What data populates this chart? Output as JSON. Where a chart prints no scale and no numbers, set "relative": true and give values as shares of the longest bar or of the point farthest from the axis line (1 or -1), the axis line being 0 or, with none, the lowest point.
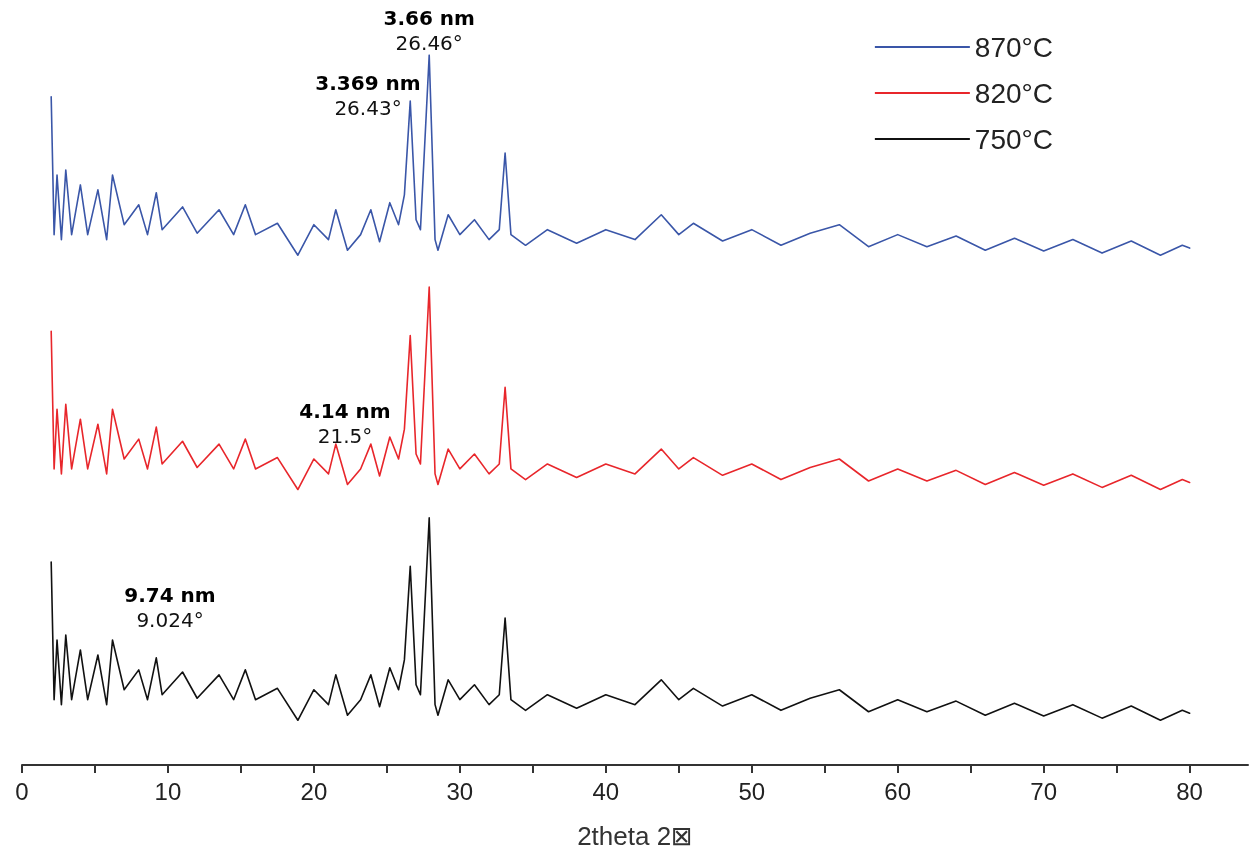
{
  "chart_data": {
    "type": "line",
    "relative": true,
    "xlabel": "2theta 2⊠",
    "legend": "top right",
    "tick_labels": "x",
    "xlim": [
      0,
      84
    ],
    "xticks": [
      0,
      {
        "value": 5,
        "label": null
      },
      10,
      {
        "value": 15,
        "label": null
      },
      20,
      {
        "value": 25,
        "label": null
      },
      30,
      {
        "value": 35,
        "label": null
      },
      40,
      {
        "value": 45,
        "label": null
      },
      50,
      {
        "value": 55,
        "label": null
      },
      60,
      {
        "value": 65,
        "label": null
      },
      70,
      {
        "value": 75,
        "label": null
      },
      80
    ],
    "x": [
      2.0,
      2.2,
      2.4,
      2.7,
      3.0,
      3.4,
      4.0,
      4.5,
      5.2,
      5.8,
      6.2,
      7.0,
      8.0,
      8.6,
      9.2,
      9.6,
      11,
      12,
      13.5,
      14.5,
      15.3,
      16,
      17.5,
      18.9,
      20,
      21,
      21.5,
      22.3,
      23.2,
      23.9,
      24.5,
      25.2,
      25.8,
      26.2,
      26.6,
      27.0,
      27.3,
      27.9,
      28.3,
      28.5,
      29.2,
      30,
      31,
      32,
      32.7,
      33.1,
      33.5,
      34.5,
      36,
      38,
      40,
      42,
      43.8,
      45,
      46,
      48,
      50,
      52,
      54,
      56,
      58,
      60,
      62,
      64,
      66,
      68,
      70,
      72,
      74,
      76,
      78,
      79.5,
      80
    ],
    "series": [
      {
        "name": "870°C",
        "color": "#3a56a8",
        "values": [
          0.941,
          0.747,
          0.831,
          0.74,
          0.838,
          0.747,
          0.817,
          0.747,
          0.81,
          0.74,
          0.831,
          0.761,
          0.789,
          0.747,
          0.806,
          0.754,
          0.786,
          0.749,
          0.782,
          0.747,
          0.789,
          0.747,
          0.763,
          0.718,
          0.761,
          0.74,
          0.782,
          0.725,
          0.747,
          0.782,
          0.737,
          0.792,
          0.761,
          0.803,
          0.935,
          0.768,
          0.754,
          1.0,
          0.74,
          0.725,
          0.775,
          0.747,
          0.768,
          0.74,
          0.754,
          0.862,
          0.747,
          0.732,
          0.754,
          0.735,
          0.754,
          0.74,
          0.775,
          0.747,
          0.763,
          0.738,
          0.754,
          0.732,
          0.749,
          0.761,
          0.73,
          0.747,
          0.73,
          0.745,
          0.725,
          0.742,
          0.724,
          0.74,
          0.721,
          0.738,
          0.718,
          0.732,
          0.728
        ]
      },
      {
        "name": "820°C",
        "color": "#e8262b",
        "values": [
          0.611,
          0.417,
          0.501,
          0.41,
          0.508,
          0.417,
          0.487,
          0.417,
          0.48,
          0.41,
          0.501,
          0.431,
          0.459,
          0.417,
          0.476,
          0.424,
          0.456,
          0.419,
          0.452,
          0.417,
          0.459,
          0.417,
          0.433,
          0.388,
          0.431,
          0.41,
          0.452,
          0.395,
          0.417,
          0.452,
          0.407,
          0.462,
          0.431,
          0.473,
          0.605,
          0.438,
          0.424,
          0.673,
          0.41,
          0.395,
          0.445,
          0.417,
          0.438,
          0.41,
          0.424,
          0.532,
          0.417,
          0.402,
          0.424,
          0.405,
          0.424,
          0.41,
          0.445,
          0.417,
          0.433,
          0.408,
          0.424,
          0.402,
          0.419,
          0.431,
          0.4,
          0.417,
          0.4,
          0.415,
          0.395,
          0.412,
          0.394,
          0.41,
          0.391,
          0.408,
          0.388,
          0.402,
          0.398
        ]
      },
      {
        "name": "750°C",
        "color": "#111111",
        "values": [
          0.286,
          0.092,
          0.176,
          0.085,
          0.183,
          0.092,
          0.162,
          0.092,
          0.155,
          0.085,
          0.176,
          0.106,
          0.134,
          0.092,
          0.151,
          0.099,
          0.131,
          0.094,
          0.127,
          0.092,
          0.134,
          0.092,
          0.108,
          0.063,
          0.106,
          0.085,
          0.127,
          0.07,
          0.092,
          0.127,
          0.082,
          0.137,
          0.106,
          0.148,
          0.28,
          0.113,
          0.099,
          0.348,
          0.085,
          0.07,
          0.12,
          0.092,
          0.113,
          0.085,
          0.099,
          0.207,
          0.092,
          0.077,
          0.099,
          0.08,
          0.099,
          0.085,
          0.12,
          0.092,
          0.108,
          0.083,
          0.099,
          0.077,
          0.094,
          0.106,
          0.075,
          0.092,
          0.075,
          0.09,
          0.07,
          0.087,
          0.069,
          0.085,
          0.066,
          0.083,
          0.063,
          0.077,
          0.073
        ]
      }
    ],
    "annotations": [
      {
        "text": "3.66 nm\n26.46°",
        "x": 27.9,
        "y": 1.0
      },
      "3.369 nm\n26.43°",
      "4.14 nm\n21.5°",
      "9.74 nm\n9.024°"
    ]
  }
}
